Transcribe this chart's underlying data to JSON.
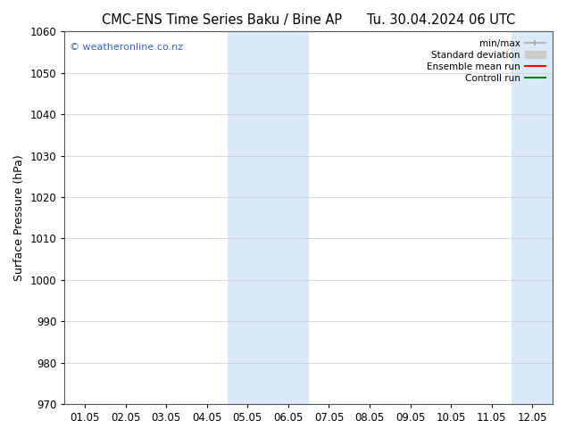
{
  "title_left": "CMC-ENS Time Series Baku / Bine AP",
  "title_right": "Tu. 30.04.2024 06 UTC",
  "ylabel": "Surface Pressure (hPa)",
  "ylim": [
    970,
    1060
  ],
  "yticks": [
    970,
    980,
    990,
    1000,
    1010,
    1020,
    1030,
    1040,
    1050,
    1060
  ],
  "xtick_labels": [
    "01.05",
    "02.05",
    "03.05",
    "04.05",
    "05.05",
    "06.05",
    "07.05",
    "08.05",
    "09.05",
    "10.05",
    "11.05",
    "12.05"
  ],
  "xtick_positions": [
    0,
    1,
    2,
    3,
    4,
    5,
    6,
    7,
    8,
    9,
    10,
    11
  ],
  "xlim": [
    -0.5,
    11.5
  ],
  "shaded_regions": [
    {
      "x_start": 3.5,
      "x_end": 5.5
    },
    {
      "x_start": 10.5,
      "x_end": 11.5
    }
  ],
  "shaded_color": "#daeaf8",
  "watermark_text": "© weatheronline.co.nz",
  "watermark_color": "#3366cc",
  "bg_color": "#ffffff",
  "grid_color": "#cccccc",
  "title_fontsize": 10.5,
  "axis_label_fontsize": 9,
  "tick_fontsize": 8.5,
  "legend_fontsize": 7.5,
  "minmax_color": "#aaaaaa",
  "std_color": "#cccccc",
  "ensemble_color": "red",
  "control_color": "green"
}
